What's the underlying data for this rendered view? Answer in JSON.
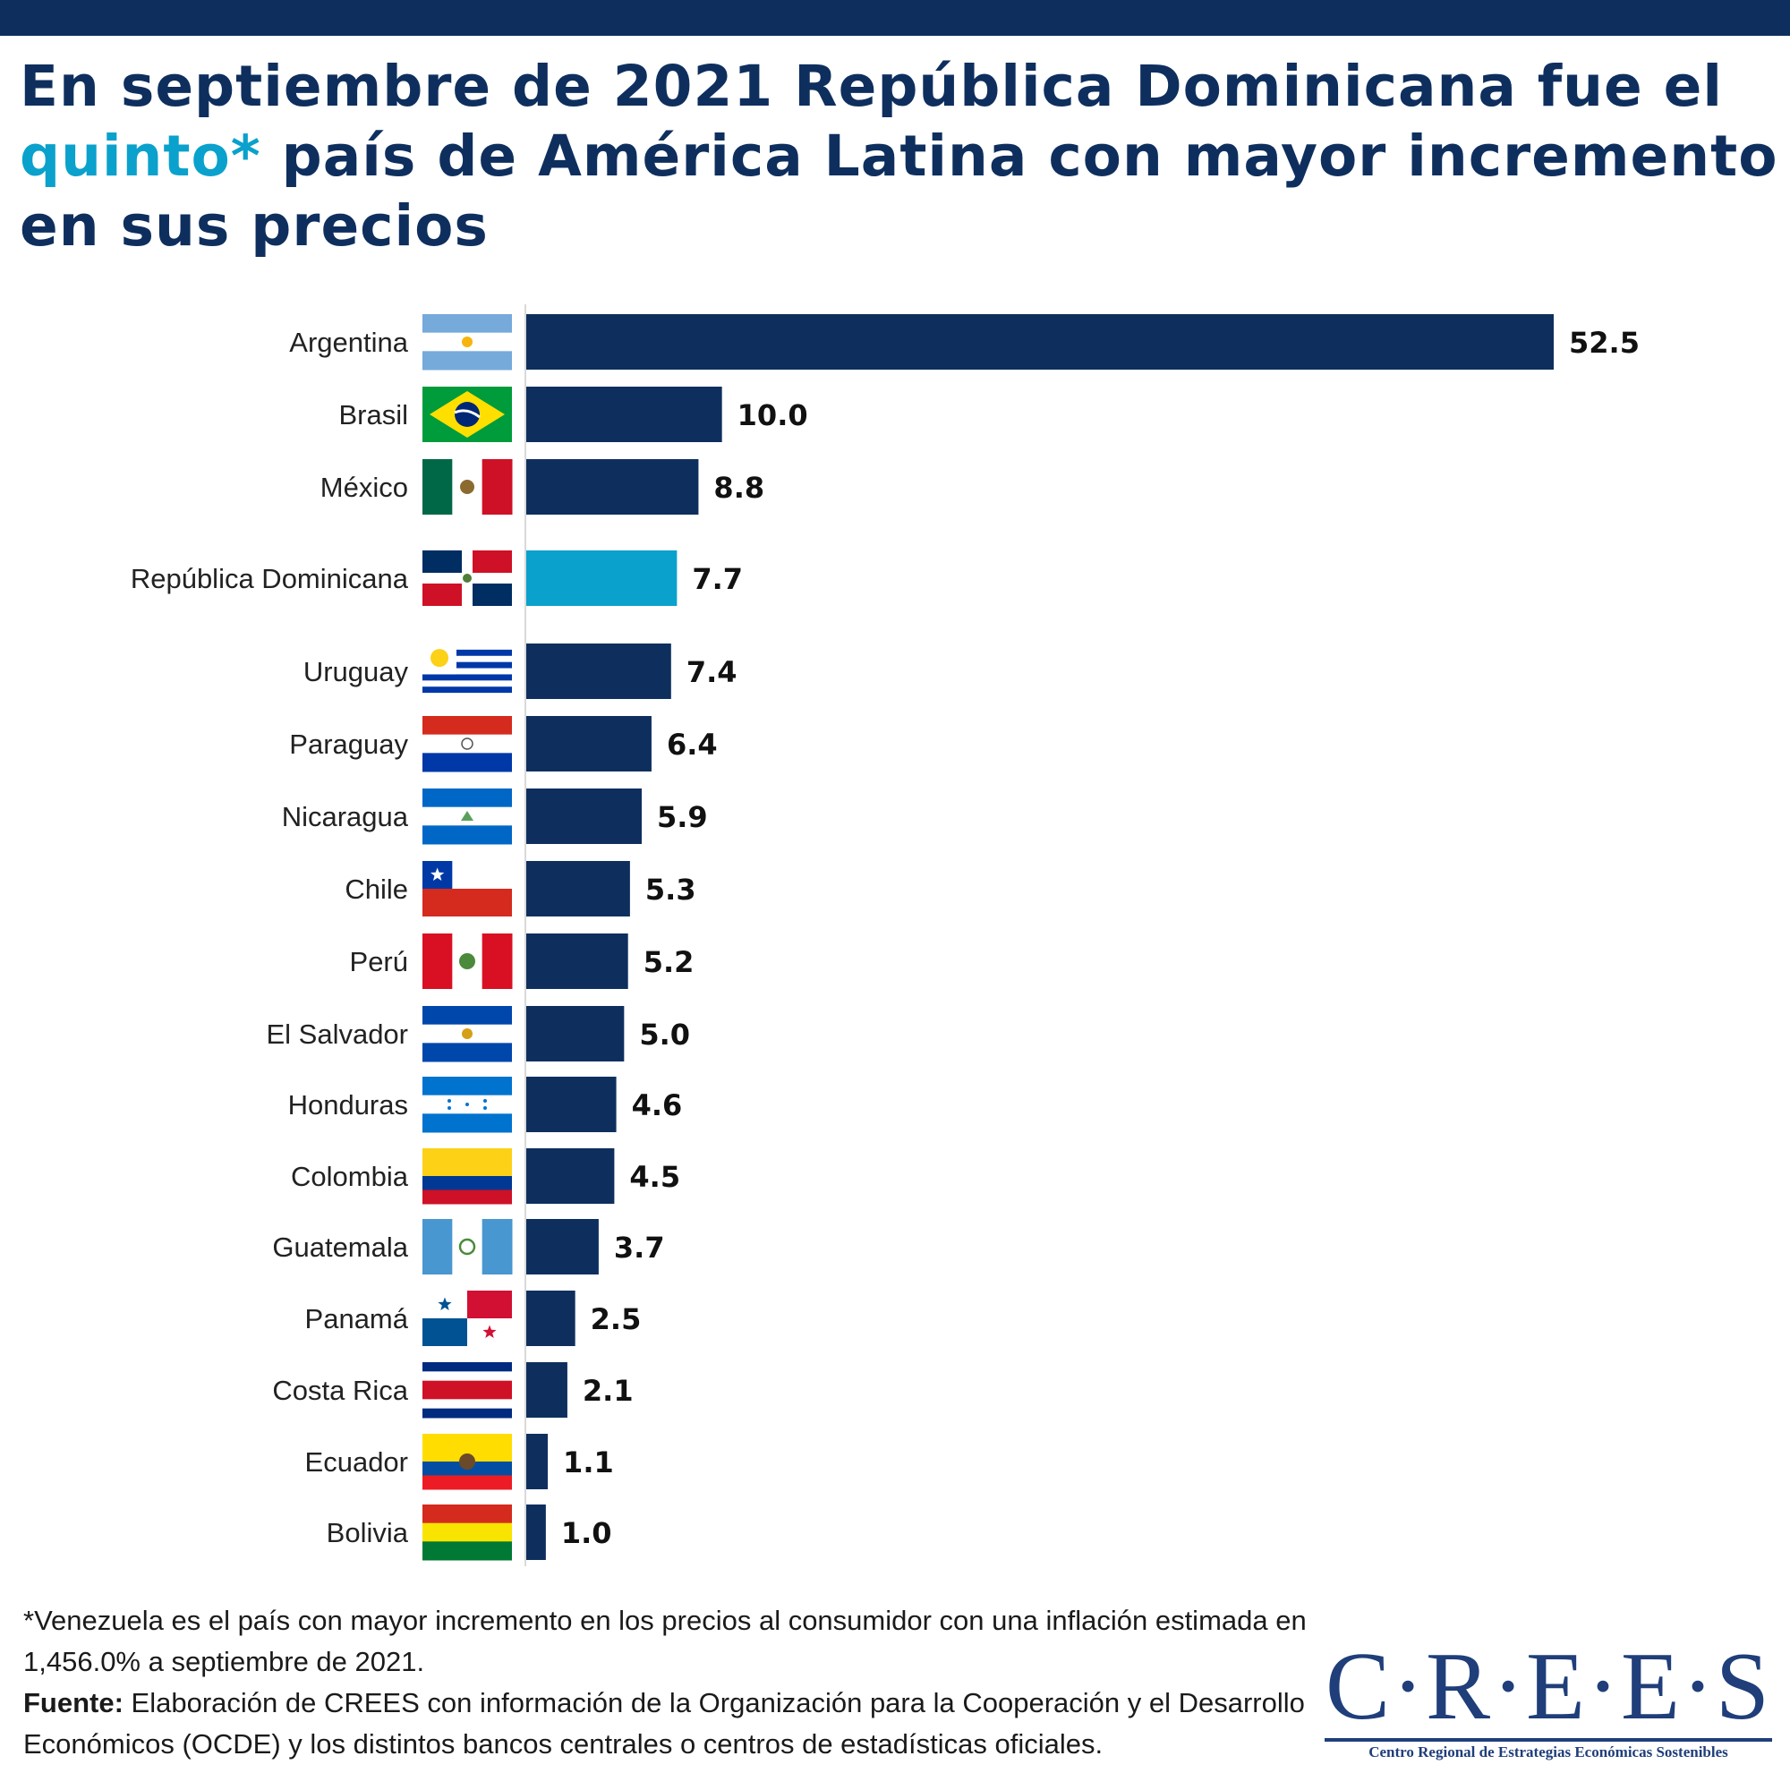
{
  "title": {
    "line1": "En septiembre de 2021 República Dominicana fue el",
    "highlight": "quinto*",
    "line2_rest": " país de América Latina con mayor incremento",
    "line3": "en sus precios"
  },
  "colors": {
    "bar": "#0e2f5e",
    "highlight_bar": "#0aa1cc",
    "title": "#0e2f5e",
    "accent": "#0aa1cc"
  },
  "chart_data": {
    "type": "bar",
    "orientation": "horizontal",
    "categories": [
      "Argentina",
      "Brasil",
      "México",
      "República Dominicana",
      "Uruguay",
      "Paraguay",
      "Nicaragua",
      "Chile",
      "Perú",
      "El Salvador",
      "Honduras",
      "Colombia",
      "Guatemala",
      "Panamá",
      "Costa Rica",
      "Ecuador",
      "Bolivia"
    ],
    "values": [
      52.5,
      10.0,
      8.8,
      7.7,
      7.4,
      6.4,
      5.9,
      5.3,
      5.2,
      5.0,
      4.6,
      4.5,
      3.7,
      2.5,
      2.1,
      1.1,
      1.0
    ],
    "value_labels": [
      "52.5",
      "10.0",
      "8.8",
      "7.7",
      "7.4",
      "6.4",
      "5.9",
      "5.3",
      "5.2",
      "5.0",
      "4.6",
      "4.5",
      "3.7",
      "2.5",
      "2.1",
      "1.1",
      "1.0"
    ],
    "highlight": "República Dominicana",
    "flags": [
      "argentina-flag-icon",
      "brazil-flag-icon",
      "mexico-flag-icon",
      "dominican-republic-flag-icon",
      "uruguay-flag-icon",
      "paraguay-flag-icon",
      "nicaragua-flag-icon",
      "chile-flag-icon",
      "peru-flag-icon",
      "el-salvador-flag-icon",
      "honduras-flag-icon",
      "colombia-flag-icon",
      "guatemala-flag-icon",
      "panama-flag-icon",
      "costa-rica-flag-icon",
      "ecuador-flag-icon",
      "bolivia-flag-icon"
    ],
    "xlim": [
      0,
      52.5
    ],
    "grid": false,
    "legend": "none"
  },
  "footnote": {
    "line1": "*Venezuela es el país con mayor incremento en los precios al consumidor con una inflación estimada en 1,456.0% a septiembre de 2021.",
    "source_label": "Fuente:",
    "source_text": " Elaboración de CREES con información de la Organización para la Cooperación y el Desarrollo Económicos (OCDE) y los distintos bancos centrales o centros de estadísticas oficiales."
  },
  "logo": {
    "text": "C·R·E·E·S",
    "subtitle": "Centro Regional de Estrategias Económicas Sostenibles"
  }
}
